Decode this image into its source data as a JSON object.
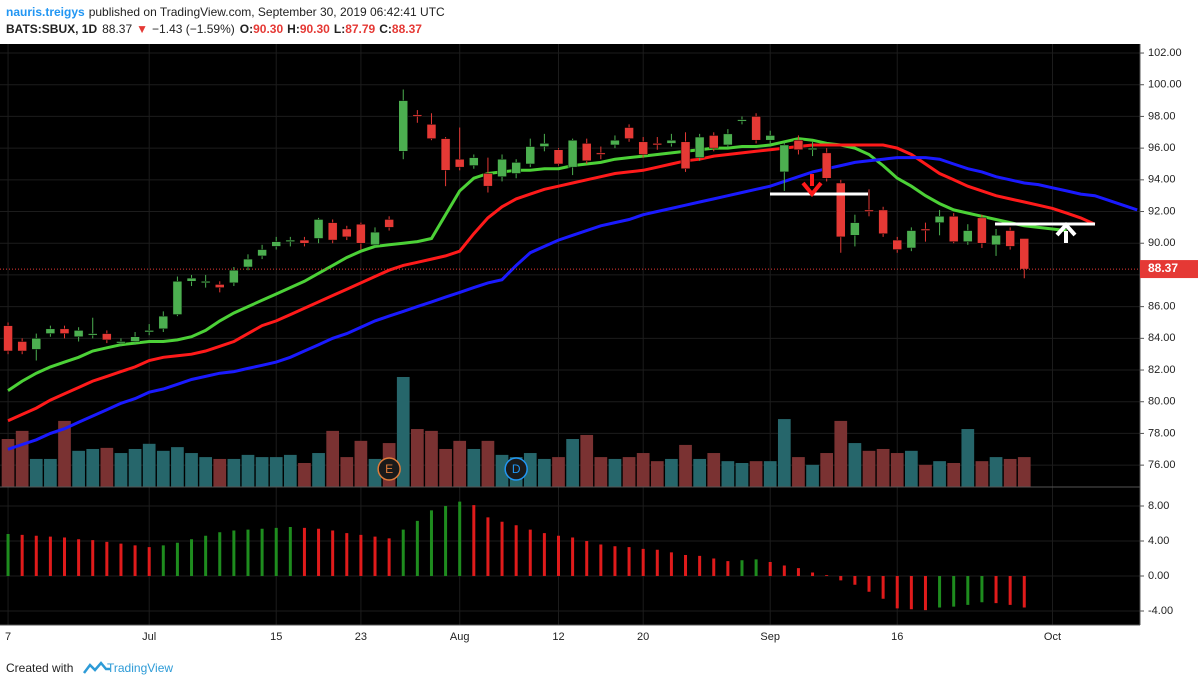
{
  "header": {
    "author": "nauris.treigys",
    "published": "published on TradingView.com, September 30, 2019 06:42:41 UTC",
    "symbol": "BATS:SBUX, 1D",
    "last": "88.37",
    "arrow": "▼",
    "change": "−1.43 (−1.59%)",
    "o_label": "O:",
    "o": "90.30",
    "h_label": "H:",
    "h": "90.30",
    "l_label": "L:",
    "l": "87.79",
    "c_label": "C:",
    "c": "88.37"
  },
  "footer": {
    "text": "Created with",
    "brand": "TradingView"
  },
  "chart_data": [
    {
      "type": "candlestick",
      "up_color": "#4caf50",
      "down_color": "#e53935",
      "volume_up_color": "#26666b",
      "volume_down_color": "#7a3232",
      "ylim": [
        74.62,
        102.57
      ],
      "volume_lim": [
        0,
        120
      ],
      "xlim": [
        -0.57,
        80.2
      ],
      "grid": true,
      "yticks": [
        {
          "value": 76,
          "label": "76.00"
        },
        {
          "value": 78,
          "label": "78.00"
        },
        {
          "value": 80,
          "label": "80.00"
        },
        {
          "value": 82,
          "label": "82.00"
        },
        {
          "value": 84,
          "label": "84.00"
        },
        {
          "value": 86,
          "label": "86.00"
        },
        {
          "value": 88,
          "label": "88.00"
        },
        {
          "value": 90,
          "label": "90.00"
        },
        {
          "value": 92,
          "label": "92.00"
        },
        {
          "value": 94,
          "label": "94.00"
        },
        {
          "value": 96,
          "label": "96.00"
        },
        {
          "value": 98,
          "label": "98.00"
        },
        {
          "value": 100,
          "label": "100.00"
        },
        {
          "value": 102,
          "label": "102.00"
        }
      ],
      "xticks": [
        {
          "value": 0,
          "label": "7"
        },
        {
          "value": 10,
          "label": "Jul"
        },
        {
          "value": 19,
          "label": "15"
        },
        {
          "value": 25,
          "label": "23"
        },
        {
          "value": 32,
          "label": "Aug"
        },
        {
          "value": 39,
          "label": "12"
        },
        {
          "value": 45,
          "label": "20"
        },
        {
          "value": 54,
          "label": "Sep"
        },
        {
          "value": 63,
          "label": "16"
        },
        {
          "value": 74,
          "label": "Oct"
        }
      ],
      "last_price": {
        "value": 88.37,
        "label": "88.37",
        "color": "#e53935"
      },
      "events": [
        {
          "label": "E",
          "at": 27,
          "color": "#e07b39"
        },
        {
          "label": "D",
          "at": 36,
          "color": "#2196f3"
        }
      ],
      "open": [
        84.8,
        83.8,
        83.3,
        84.3,
        84.6,
        84.1,
        84.2,
        84.3,
        83.7,
        83.8,
        84.4,
        84.6,
        85.5,
        87.6,
        87.5,
        87.4,
        87.5,
        88.5,
        89.2,
        89.8,
        90.1,
        90.2,
        90.3,
        91.3,
        90.9,
        91.2,
        89.9,
        91.5,
        95.8,
        98.1,
        97.5,
        96.6,
        95.3,
        94.9,
        94.4,
        94.2,
        94.4,
        95.0,
        96.1,
        95.9,
        94.8,
        96.3,
        95.7,
        96.2,
        97.3,
        96.4,
        96.3,
        96.3,
        96.4,
        95.4,
        96.8,
        96.2,
        97.7,
        98.0,
        96.5,
        94.5,
        96.5,
        95.9,
        95.7,
        93.8,
        90.5,
        92.1,
        92.1,
        90.2,
        89.7,
        90.9,
        91.3,
        91.7,
        90.1,
        91.6,
        89.9,
        90.8,
        90.3
      ],
      "high": [
        85.0,
        84.0,
        84.3,
        84.8,
        84.8,
        84.7,
        85.3,
        84.5,
        84.0,
        84.4,
        84.9,
        85.7,
        87.9,
        88.0,
        88.0,
        87.6,
        88.5,
        89.3,
        89.9,
        90.4,
        90.4,
        90.4,
        91.6,
        91.5,
        91.1,
        91.3,
        91.0,
        91.7,
        99.7,
        98.4,
        98.2,
        96.7,
        97.3,
        95.6,
        95.4,
        95.6,
        95.3,
        96.6,
        96.9,
        96.0,
        96.6,
        96.6,
        96.1,
        96.8,
        97.5,
        96.7,
        96.7,
        96.9,
        97.0,
        96.9,
        97.0,
        97.2,
        98.0,
        98.2,
        97.1,
        96.4,
        96.8,
        96.4,
        96.0,
        94.0,
        91.8,
        93.4,
        92.3,
        90.4,
        91.0,
        91.3,
        92.1,
        91.9,
        91.2,
        91.8,
        90.9,
        91.0,
        90.3
      ],
      "low": [
        83.0,
        83.0,
        82.6,
        84.1,
        84.0,
        83.8,
        84.0,
        83.7,
        83.5,
        83.6,
        84.2,
        84.4,
        85.4,
        87.3,
        87.2,
        86.9,
        87.3,
        88.3,
        89.0,
        89.6,
        89.8,
        89.8,
        90.0,
        90.0,
        90.2,
        89.6,
        89.7,
        90.8,
        95.3,
        97.6,
        96.5,
        93.6,
        94.6,
        94.7,
        93.2,
        93.9,
        94.1,
        94.8,
        95.8,
        94.9,
        94.3,
        95.0,
        95.3,
        96.0,
        96.4,
        95.4,
        95.9,
        96.1,
        94.5,
        95.2,
        95.8,
        96.0,
        97.5,
        96.3,
        96.2,
        93.3,
        95.6,
        95.5,
        93.9,
        89.4,
        89.8,
        91.7,
        90.4,
        89.4,
        89.5,
        90.1,
        90.5,
        90.0,
        89.9,
        89.7,
        89.2,
        89.6,
        87.79
      ],
      "close": [
        83.2,
        83.2,
        84.0,
        84.6,
        84.3,
        84.5,
        84.3,
        83.9,
        83.8,
        84.1,
        84.5,
        85.4,
        87.6,
        87.8,
        87.6,
        87.2,
        88.3,
        89.0,
        89.6,
        90.1,
        90.2,
        90.0,
        91.5,
        90.2,
        90.4,
        90.0,
        90.7,
        91.0,
        99.0,
        98.0,
        96.6,
        94.6,
        94.8,
        95.4,
        93.6,
        95.3,
        95.1,
        96.1,
        96.3,
        95.0,
        96.5,
        95.2,
        95.6,
        96.5,
        96.6,
        95.6,
        96.2,
        96.5,
        94.7,
        96.7,
        96.0,
        96.9,
        97.8,
        96.5,
        96.8,
        96.2,
        95.9,
        96.0,
        94.1,
        90.4,
        91.3,
        92.0,
        90.6,
        89.6,
        90.8,
        90.8,
        91.7,
        90.1,
        90.8,
        90.0,
        90.5,
        89.8,
        88.37
      ],
      "volume": [
        13.0,
        15.2,
        7.6,
        7.6,
        17.9,
        9.8,
        10.3,
        10.6,
        9.2,
        10.3,
        11.7,
        9.8,
        10.8,
        9.2,
        8.1,
        7.6,
        7.6,
        8.7,
        8.1,
        8.1,
        8.7,
        6.5,
        9.2,
        15.2,
        8.1,
        12.5,
        7.6,
        11.9,
        29.8,
        15.7,
        15.2,
        10.3,
        12.5,
        10.3,
        12.5,
        8.7,
        8.1,
        9.2,
        7.6,
        8.1,
        13.0,
        14.1,
        8.1,
        7.6,
        8.1,
        9.2,
        7.0,
        7.6,
        11.4,
        7.6,
        9.2,
        7.0,
        6.5,
        7.0,
        7.0,
        18.4,
        8.1,
        6.0,
        9.2,
        17.9,
        11.9,
        9.8,
        10.3,
        9.2,
        9.8,
        6.0,
        7.0,
        6.5,
        15.7,
        7.0,
        8.1,
        7.6,
        8.1
      ],
      "lines": [
        {
          "color": "#4cd137",
          "values": [
            80.7,
            81.3,
            81.8,
            82.2,
            82.5,
            82.8,
            83.2,
            83.4,
            83.6,
            83.7,
            83.8,
            83.8,
            83.9,
            84.1,
            84.5,
            85.1,
            85.6,
            86.0,
            86.4,
            86.8,
            87.2,
            87.6,
            88.1,
            88.6,
            89.1,
            89.5,
            89.8,
            89.9,
            90.0,
            90.1,
            90.3,
            91.8,
            93.3,
            94.1,
            94.4,
            94.5,
            94.6,
            94.6,
            94.7,
            94.7,
            94.9,
            95.0,
            95.1,
            95.3,
            95.4,
            95.5,
            95.6,
            95.7,
            95.8,
            95.9,
            96.0,
            96.0,
            96.1,
            96.1,
            96.2,
            96.4,
            96.6,
            96.5,
            96.3,
            96.2,
            96.0,
            95.6,
            94.9,
            94.1,
            93.6,
            93.0,
            92.5,
            92.1,
            91.9,
            91.7,
            91.5,
            91.3,
            91.1,
            91.0,
            90.9,
            90.8,
            null,
            null,
            null,
            null,
            null
          ]
        },
        {
          "color": "#ff1a1a",
          "values": [
            78.8,
            79.2,
            79.6,
            80.1,
            80.5,
            80.9,
            81.3,
            81.6,
            81.9,
            82.2,
            82.6,
            82.8,
            82.9,
            83.0,
            83.2,
            83.5,
            83.8,
            84.3,
            84.8,
            85.1,
            85.5,
            85.9,
            86.3,
            86.7,
            87.1,
            87.5,
            87.9,
            88.3,
            88.6,
            88.8,
            89.0,
            89.2,
            89.5,
            90.6,
            91.6,
            92.3,
            92.8,
            93.1,
            93.4,
            93.6,
            93.8,
            94.0,
            94.2,
            94.4,
            94.5,
            94.6,
            94.8,
            95.0,
            95.2,
            95.3,
            95.5,
            95.6,
            95.7,
            95.8,
            95.9,
            96.0,
            96.1,
            96.2,
            96.2,
            96.2,
            96.2,
            96.2,
            96.2,
            96.0,
            95.6,
            95.0,
            94.4,
            94.0,
            93.6,
            93.3,
            93.0,
            92.8,
            92.6,
            92.4,
            92.2,
            91.9,
            91.6,
            91.2,
            null,
            null,
            null
          ]
        },
        {
          "color": "#1a1aff",
          "values": [
            77.0,
            77.3,
            77.6,
            78.0,
            78.3,
            78.7,
            79.1,
            79.5,
            79.9,
            80.2,
            80.6,
            80.8,
            81.1,
            81.4,
            81.6,
            81.8,
            81.9,
            82.1,
            82.3,
            82.5,
            82.8,
            83.2,
            83.6,
            84.0,
            84.3,
            84.7,
            85.1,
            85.4,
            85.7,
            86.0,
            86.3,
            86.6,
            86.9,
            87.2,
            87.5,
            87.7,
            88.6,
            89.4,
            89.8,
            90.2,
            90.5,
            90.8,
            91.1,
            91.3,
            91.5,
            91.8,
            92.0,
            92.2,
            92.4,
            92.6,
            92.8,
            93.0,
            93.2,
            93.4,
            93.6,
            93.9,
            94.2,
            94.5,
            94.7,
            94.9,
            95.1,
            95.2,
            95.3,
            95.4,
            95.4,
            95.4,
            95.3,
            95.0,
            94.7,
            94.5,
            94.2,
            94.0,
            93.8,
            93.7,
            93.5,
            93.3,
            93.1,
            93.0,
            92.7,
            92.4,
            92.1
          ]
        }
      ]
    },
    {
      "type": "bar",
      "up_color": "#1e8c1e",
      "down_color": "#e01b1b",
      "ylim": [
        -5.6,
        10.17
      ],
      "grid": true,
      "yticks": [
        {
          "value": 8,
          "label": "8.00"
        },
        {
          "value": 4,
          "label": "4.00"
        },
        {
          "value": 0,
          "label": "0.00"
        },
        {
          "value": -4,
          "label": "-4.00"
        }
      ],
      "values": [
        4.8,
        4.7,
        4.6,
        4.5,
        4.4,
        4.2,
        4.1,
        3.9,
        3.7,
        3.5,
        3.3,
        3.5,
        3.8,
        4.2,
        4.6,
        5.0,
        5.2,
        5.3,
        5.4,
        5.5,
        5.6,
        5.5,
        5.4,
        5.2,
        4.9,
        4.7,
        4.5,
        4.3,
        5.3,
        6.3,
        7.5,
        8.0,
        8.5,
        8.1,
        6.7,
        6.2,
        5.8,
        5.3,
        4.9,
        4.6,
        4.4,
        4.0,
        3.6,
        3.4,
        3.3,
        3.1,
        3.0,
        2.7,
        2.4,
        2.3,
        2.0,
        1.7,
        1.8,
        1.9,
        1.6,
        1.2,
        0.9,
        0.4,
        0.1,
        -0.5,
        -1.0,
        -1.8,
        -2.6,
        -3.7,
        -3.8,
        -3.9,
        -3.6,
        -3.5,
        -3.3,
        -3.0,
        -3.1,
        -3.3,
        -3.6
      ]
    }
  ]
}
